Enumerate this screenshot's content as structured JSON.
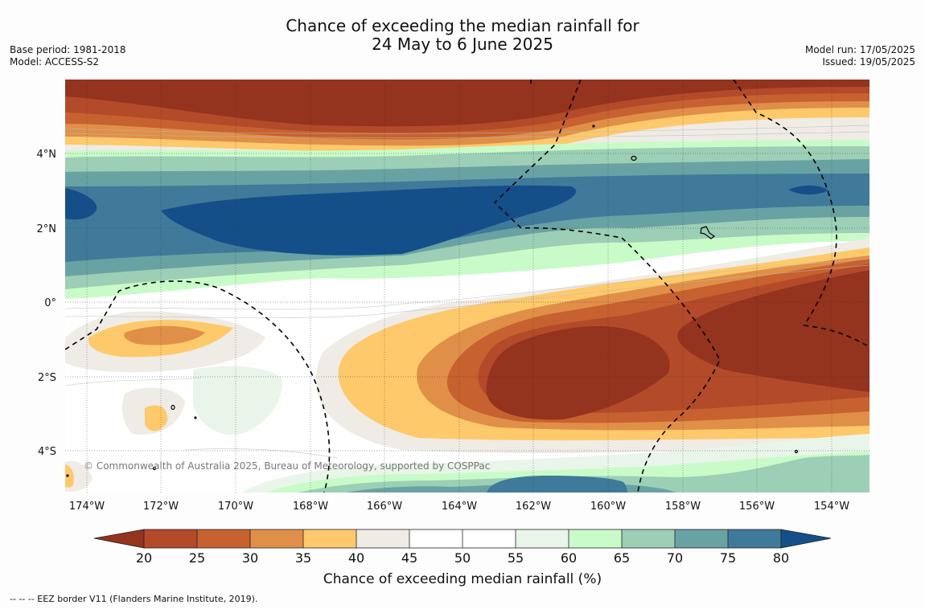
{
  "title_line1": "Chance of exceeding the median rainfall for",
  "title_line2": "24 May to 6 June 2025",
  "meta_left": [
    "Base period: 1981-2018",
    "Model: ACCESS-S2"
  ],
  "meta_right": [
    "Model run: 17/05/2025",
    "Issued: 19/05/2025"
  ],
  "map": {
    "lon_labels": [
      "174°W",
      "172°W",
      "170°W",
      "168°W",
      "166°W",
      "164°W",
      "162°W",
      "160°W",
      "158°W",
      "156°W",
      "154°W"
    ],
    "lat_labels": [
      "4°N",
      "2°N",
      "0°",
      "2°S",
      "4°S"
    ],
    "copyright": "© Commonwealth of Australia 2025, Bureau of Meteorology, supported by COSPPac"
  },
  "colorbar": {
    "ticks": [
      "20",
      "25",
      "30",
      "35",
      "40",
      "45",
      "50",
      "55",
      "60",
      "65",
      "70",
      "75",
      "80"
    ],
    "title": "Chance of exceeding median rainfall (%)",
    "colors": {
      "below20": "#94331e",
      "20-25": "#b34a29",
      "25-30": "#c7612f",
      "30-35": "#e08f48",
      "35-40": "#fdc96b",
      "40-45": "#efebe5",
      "45-50": "#ffffff",
      "50-55": "#ffffff",
      "55-60": "#e9f5e9",
      "60-65": "#c9fbc9",
      "65-70": "#9ccfb5",
      "70-75": "#69a2a3",
      "75-80": "#3f7a9a",
      "above80": "#154f8a"
    }
  },
  "legend_note": "--  --  -- EEZ border V11 (Flanders Marine Institute, 2019)."
}
